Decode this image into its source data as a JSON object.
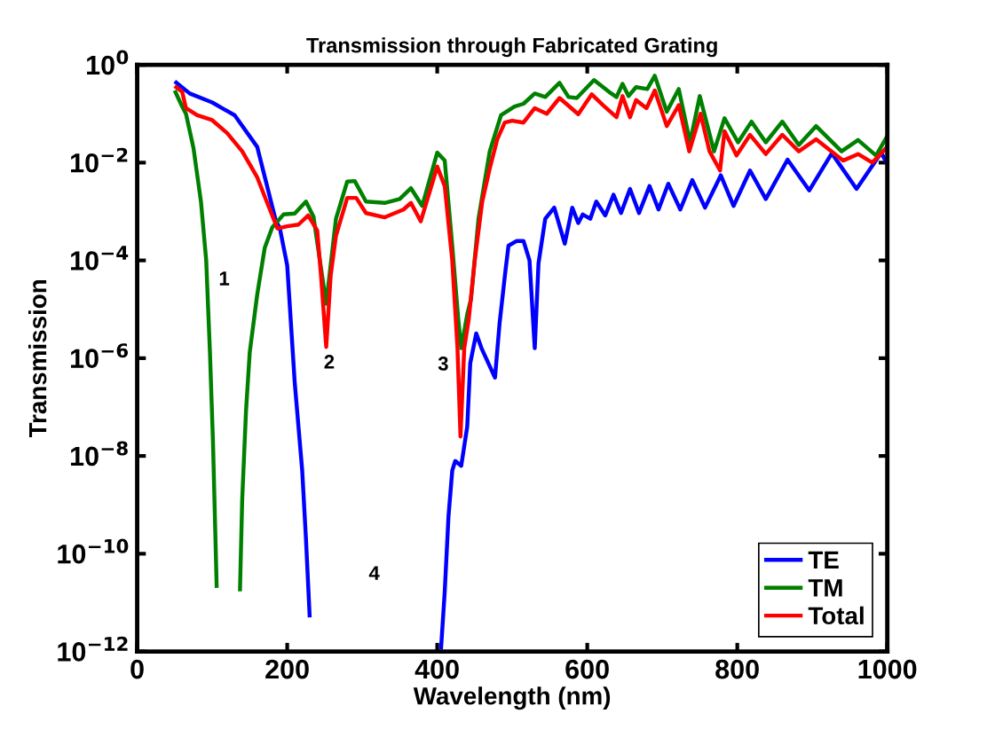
{
  "chart_data": {
    "type": "line",
    "title": "Transmission through Fabricated Grating",
    "xlabel": "Wavelength (nm)",
    "ylabel": "Transmission",
    "log": "y",
    "xlim": [
      0,
      1000
    ],
    "ylim": [
      1e-12,
      1
    ],
    "xticks": [
      0,
      200,
      400,
      600,
      800,
      1000
    ],
    "yticks": [
      {
        "value": 1e-12,
        "label": "10$^{−12}$"
      },
      {
        "value": 1e-10,
        "label": "10$^{−10}$"
      },
      {
        "value": 1e-08,
        "label": "10$^{−8}$"
      },
      {
        "value": 1e-06,
        "label": "10$^{−6}$"
      },
      {
        "value": 0.0001,
        "label": "10$^{−4}$"
      },
      {
        "value": 0.01,
        "label": "10$^{−2}$"
      },
      {
        "value": 1,
        "label": "10$^{0}$"
      }
    ],
    "grid": false,
    "legend": "bottom right",
    "marker": "none",
    "line_style": "solid",
    "series": [
      {
        "name": "TE",
        "color": "#0000ff",
        "x": [
          50,
          70,
          100,
          130,
          160,
          185,
          190,
          200,
          210,
          220,
          225,
          230,
          300,
          405,
          410,
          415,
          420,
          424,
          432,
          440,
          444,
          452,
          459,
          477,
          483,
          491,
          495,
          506,
          515,
          523,
          530,
          535,
          544,
          556,
          570,
          580,
          588,
          594,
          604,
          612,
          624,
          635,
          645,
          657,
          669,
          683,
          695,
          708,
          724,
          740,
          757,
          778,
          795,
          817,
          838,
          867,
          896,
          926,
          959,
          992,
          1000
        ],
        "values": [
          0.46,
          0.26,
          0.17,
          0.093,
          0.021,
          0.00063,
          0.00047,
          7.9e-05,
          3.2e-07,
          5e-09,
          2e-10,
          5e-12,
          null,
          1.1e-12,
          1.7e-11,
          5.8e-10,
          5e-09,
          7.9e-09,
          6.3e-09,
          4e-08,
          7.9e-07,
          3.2e-06,
          1.6e-06,
          4e-07,
          5e-06,
          6.3e-05,
          0.0002,
          0.00025,
          0.00025,
          0.0001,
          1.6e-06,
          8.7e-05,
          0.00071,
          0.0012,
          0.00022,
          0.0012,
          0.00058,
          0.00087,
          0.00071,
          0.0016,
          0.00083,
          0.0022,
          0.00093,
          0.0029,
          0.00093,
          0.0033,
          0.0011,
          0.0037,
          0.0011,
          0.0044,
          0.0012,
          0.0055,
          0.0013,
          0.0069,
          0.0018,
          0.0115,
          0.0027,
          0.0155,
          0.0029,
          0.016,
          0.0093
        ]
      },
      {
        "name": "TM",
        "color": "#008000",
        "x": [
          50,
          60,
          65,
          75,
          85,
          92,
          97,
          101,
          104,
          106,
          120,
          137,
          140,
          145,
          150,
          160,
          170,
          180,
          195,
          210,
          225,
          235,
          252,
          265,
          280,
          290,
          305,
          330,
          350,
          365,
          380,
          400,
          410,
          420,
          428,
          432,
          440,
          445,
          455,
          470,
          485,
          503,
          515,
          530,
          544,
          563,
          575,
          586,
          609,
          629,
          639,
          647,
          655,
          665,
          680,
          690,
          706,
          722,
          737,
          750,
          769,
          783,
          801,
          819,
          838,
          860,
          882,
          905,
          939,
          961,
          985,
          1000
        ],
        "values": [
          0.3,
          0.14,
          0.1,
          0.02,
          0.0016,
          0.0001,
          1.3e-06,
          2e-08,
          3.2e-10,
          2e-11,
          null,
          1.7e-11,
          1.3e-09,
          7.9e-08,
          1.3e-06,
          2e-05,
          0.00018,
          0.00047,
          0.00087,
          0.00091,
          0.0016,
          0.00079,
          1.3e-05,
          0.00071,
          0.0041,
          0.0042,
          0.0016,
          0.0015,
          0.0018,
          0.003,
          0.0013,
          0.016,
          0.011,
          0.0002,
          6.3e-06,
          1.6e-06,
          7.9e-06,
          1.6e-05,
          0.00071,
          0.017,
          0.093,
          0.14,
          0.16,
          0.26,
          0.22,
          0.43,
          0.22,
          0.21,
          0.49,
          0.28,
          0.22,
          0.41,
          0.23,
          0.35,
          0.32,
          0.6,
          0.11,
          0.32,
          0.026,
          0.23,
          0.017,
          0.081,
          0.026,
          0.069,
          0.026,
          0.069,
          0.023,
          0.056,
          0.017,
          0.029,
          0.014,
          0.035
        ]
      },
      {
        "name": "Total",
        "color": "#ff0000",
        "x": [
          50,
          60,
          65,
          80,
          100,
          120,
          140,
          160,
          175,
          187,
          200,
          215,
          228,
          240,
          245,
          252,
          258,
          265,
          280,
          292,
          305,
          330,
          355,
          365,
          378,
          400,
          410,
          420,
          427,
          431,
          436,
          442,
          450,
          460,
          470,
          480,
          490,
          500,
          515,
          530,
          546,
          563,
          574,
          588,
          606,
          621,
          639,
          647,
          657,
          665,
          679,
          690,
          706,
          722,
          736,
          751,
          763,
          777,
          783,
          799,
          817,
          838,
          860,
          882,
          905,
          941,
          961,
          980,
          1000
        ],
        "values": [
          0.37,
          0.28,
          0.13,
          0.093,
          0.074,
          0.04,
          0.017,
          0.005,
          0.0013,
          0.00045,
          0.0005,
          0.00054,
          0.00083,
          0.00041,
          5e-05,
          1.7e-06,
          5e-05,
          0.00032,
          0.0019,
          0.0019,
          0.00093,
          0.00076,
          0.0011,
          0.0015,
          0.00063,
          0.0083,
          0.0033,
          0.0001,
          1.6e-06,
          2.5e-08,
          1.6e-06,
          6.3e-06,
          0.0001,
          0.0016,
          0.0076,
          0.03,
          0.066,
          0.072,
          0.066,
          0.13,
          0.1,
          0.21,
          0.15,
          0.098,
          0.25,
          0.15,
          0.085,
          0.23,
          0.085,
          0.19,
          0.13,
          0.3,
          0.056,
          0.15,
          0.017,
          0.1,
          0.017,
          0.0069,
          0.044,
          0.014,
          0.037,
          0.015,
          0.037,
          0.017,
          0.03,
          0.011,
          0.015,
          0.01,
          0.021
        ]
      }
    ],
    "annotations": [
      "1",
      "2",
      "3",
      "4"
    ]
  }
}
